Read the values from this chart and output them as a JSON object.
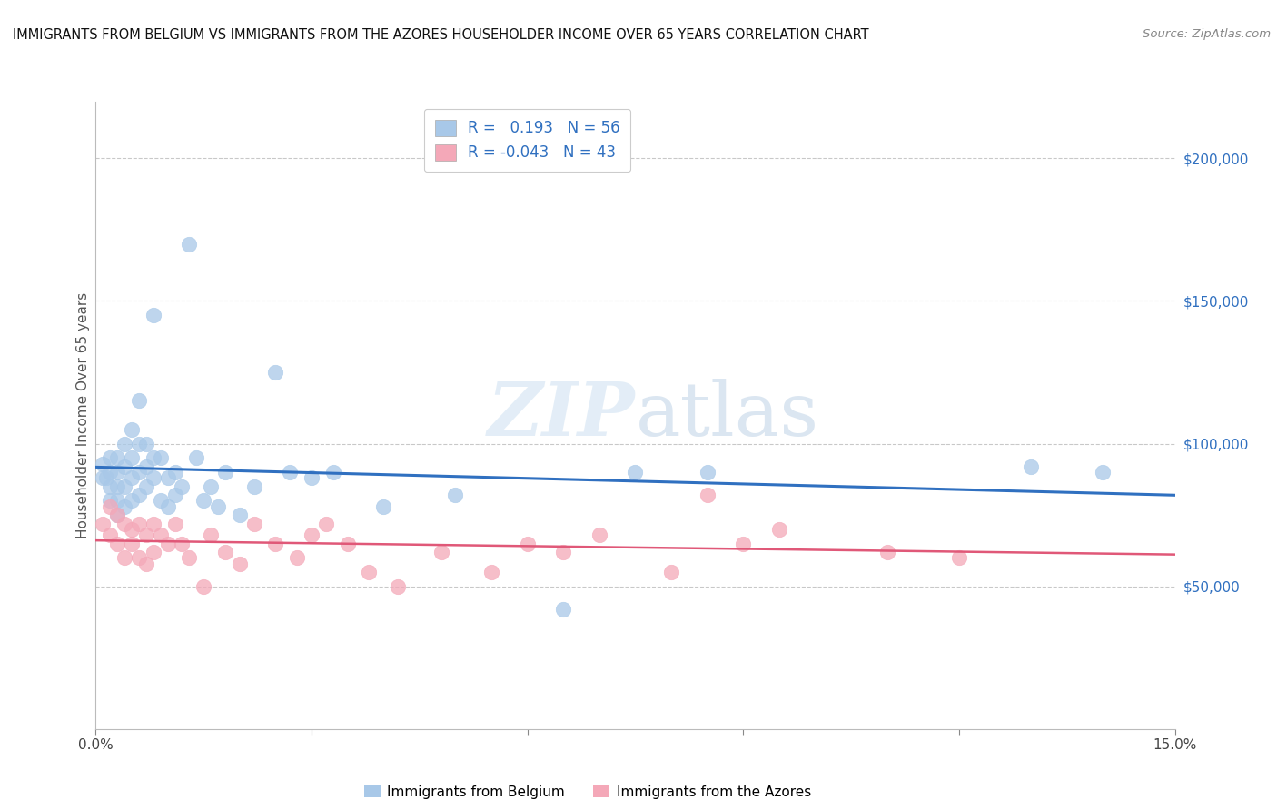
{
  "title": "IMMIGRANTS FROM BELGIUM VS IMMIGRANTS FROM THE AZORES HOUSEHOLDER INCOME OVER 65 YEARS CORRELATION CHART",
  "source": "Source: ZipAtlas.com",
  "ylabel": "Householder Income Over 65 years",
  "xlim": [
    0.0,
    0.15
  ],
  "ylim": [
    0,
    220000
  ],
  "ytick_labels_right": [
    "$200,000",
    "$150,000",
    "$100,000",
    "$50,000"
  ],
  "ytick_vals_right": [
    200000,
    150000,
    100000,
    50000
  ],
  "belgium_R": 0.193,
  "belgium_N": 56,
  "azores_R": -0.043,
  "azores_N": 43,
  "blue_color": "#A8C8E8",
  "pink_color": "#F4A8B8",
  "blue_line_color": "#3070C0",
  "pink_line_color": "#E05878",
  "legend_text_color": "#3070C0",
  "right_axis_color": "#3070C0",
  "belgium_x": [
    0.001,
    0.001,
    0.0015,
    0.002,
    0.002,
    0.002,
    0.002,
    0.003,
    0.003,
    0.003,
    0.003,
    0.003,
    0.004,
    0.004,
    0.004,
    0.004,
    0.005,
    0.005,
    0.005,
    0.005,
    0.006,
    0.006,
    0.006,
    0.006,
    0.007,
    0.007,
    0.007,
    0.008,
    0.008,
    0.008,
    0.009,
    0.009,
    0.01,
    0.01,
    0.011,
    0.011,
    0.012,
    0.013,
    0.014,
    0.015,
    0.016,
    0.017,
    0.018,
    0.02,
    0.022,
    0.025,
    0.027,
    0.03,
    0.033,
    0.04,
    0.05,
    0.065,
    0.075,
    0.085,
    0.13,
    0.14
  ],
  "belgium_y": [
    93000,
    88000,
    88000,
    95000,
    90000,
    85000,
    80000,
    95000,
    90000,
    85000,
    80000,
    75000,
    100000,
    92000,
    85000,
    78000,
    105000,
    95000,
    88000,
    80000,
    115000,
    100000,
    90000,
    82000,
    100000,
    92000,
    85000,
    145000,
    95000,
    88000,
    95000,
    80000,
    88000,
    78000,
    90000,
    82000,
    85000,
    170000,
    95000,
    80000,
    85000,
    78000,
    90000,
    75000,
    85000,
    125000,
    90000,
    88000,
    90000,
    78000,
    82000,
    42000,
    90000,
    90000,
    92000,
    90000
  ],
  "azores_x": [
    0.001,
    0.002,
    0.002,
    0.003,
    0.003,
    0.004,
    0.004,
    0.005,
    0.005,
    0.006,
    0.006,
    0.007,
    0.007,
    0.008,
    0.008,
    0.009,
    0.01,
    0.011,
    0.012,
    0.013,
    0.015,
    0.016,
    0.018,
    0.02,
    0.022,
    0.025,
    0.028,
    0.03,
    0.032,
    0.035,
    0.038,
    0.042,
    0.048,
    0.055,
    0.06,
    0.065,
    0.07,
    0.08,
    0.085,
    0.09,
    0.095,
    0.11,
    0.12
  ],
  "azores_y": [
    72000,
    78000,
    68000,
    75000,
    65000,
    72000,
    60000,
    70000,
    65000,
    72000,
    60000,
    68000,
    58000,
    72000,
    62000,
    68000,
    65000,
    72000,
    65000,
    60000,
    50000,
    68000,
    62000,
    58000,
    72000,
    65000,
    60000,
    68000,
    72000,
    65000,
    55000,
    50000,
    62000,
    55000,
    65000,
    62000,
    68000,
    55000,
    82000,
    65000,
    70000,
    62000,
    60000
  ]
}
